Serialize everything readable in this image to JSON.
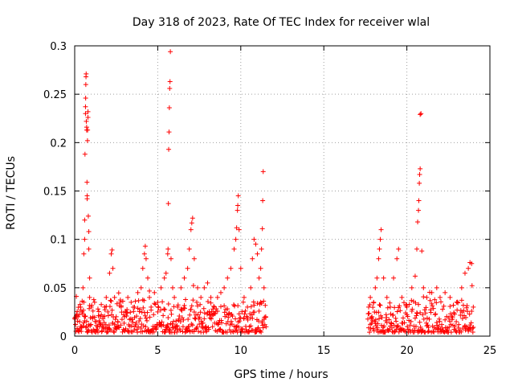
{
  "chart_data": {
    "type": "scatter",
    "title": "Day 318 of 2023, Rate Of TEC Index for receiver wlal",
    "xlabel": "GPS time / hours",
    "ylabel": "ROTI / TECUs",
    "xlim": [
      0,
      25
    ],
    "ylim": [
      0,
      0.3
    ],
    "xticks": [
      0,
      5,
      10,
      15,
      20,
      25
    ],
    "yticks": [
      0,
      0.05,
      0.1,
      0.15,
      0.2,
      0.25,
      0.3
    ],
    "xtick_labels": [
      "0",
      "5",
      "10",
      "15",
      "20",
      "25"
    ],
    "ytick_labels": [
      "0",
      "0.05",
      "0.1",
      "0.15",
      "0.2",
      "0.25",
      "0.3"
    ],
    "grid": true,
    "marker": "+",
    "series": [
      {
        "name": "ROTI",
        "color": "#ff0000",
        "points": [
          [
            0.05,
            0.012
          ],
          [
            0.1,
            0.041
          ],
          [
            0.15,
            0.008
          ],
          [
            0.2,
            0.02
          ],
          [
            0.25,
            0.006
          ],
          [
            0.3,
            0.015
          ],
          [
            0.35,
            0.03
          ],
          [
            0.4,
            0.01
          ],
          [
            0.45,
            0.025
          ],
          [
            0.5,
            0.05
          ],
          [
            0.55,
            0.035
          ],
          [
            0.55,
            0.085
          ],
          [
            0.6,
            0.1
          ],
          [
            0.6,
            0.12
          ],
          [
            0.62,
            0.188
          ],
          [
            0.65,
            0.23
          ],
          [
            0.65,
            0.237
          ],
          [
            0.66,
            0.246
          ],
          [
            0.67,
            0.26
          ],
          [
            0.68,
            0.268
          ],
          [
            0.69,
            0.271
          ],
          [
            0.7,
            0.222
          ],
          [
            0.72,
            0.213
          ],
          [
            0.72,
            0.216
          ],
          [
            0.74,
            0.159
          ],
          [
            0.75,
            0.142
          ],
          [
            0.75,
            0.145
          ],
          [
            0.77,
            0.202
          ],
          [
            0.78,
            0.213
          ],
          [
            0.8,
            0.232
          ],
          [
            0.8,
            0.226
          ],
          [
            0.82,
            0.124
          ],
          [
            0.85,
            0.108
          ],
          [
            0.85,
            0.09
          ],
          [
            0.9,
            0.06
          ],
          [
            0.9,
            0.04
          ],
          [
            1.0,
            0.03
          ],
          [
            1.1,
            0.02
          ],
          [
            1.2,
            0.035
          ],
          [
            1.3,
            0.015
          ],
          [
            1.4,
            0.028
          ],
          [
            1.5,
            0.01
          ],
          [
            1.6,
            0.022
          ],
          [
            1.7,
            0.018
          ],
          [
            1.8,
            0.03
          ],
          [
            1.9,
            0.04
          ],
          [
            2.0,
            0.025
          ],
          [
            2.1,
            0.065
          ],
          [
            2.2,
            0.085
          ],
          [
            2.25,
            0.089
          ],
          [
            2.3,
            0.07
          ],
          [
            2.4,
            0.04
          ],
          [
            2.5,
            0.02
          ],
          [
            2.6,
            0.015
          ],
          [
            2.8,
            0.03
          ],
          [
            3.0,
            0.02
          ],
          [
            3.2,
            0.04
          ],
          [
            3.4,
            0.035
          ],
          [
            3.6,
            0.03
          ],
          [
            3.8,
            0.045
          ],
          [
            4.0,
            0.05
          ],
          [
            4.1,
            0.07
          ],
          [
            4.2,
            0.085
          ],
          [
            4.25,
            0.093
          ],
          [
            4.3,
            0.08
          ],
          [
            4.4,
            0.06
          ],
          [
            4.5,
            0.04
          ],
          [
            4.6,
            0.03
          ],
          [
            4.8,
            0.045
          ],
          [
            5.0,
            0.035
          ],
          [
            5.2,
            0.05
          ],
          [
            5.4,
            0.06
          ],
          [
            5.5,
            0.065
          ],
          [
            5.6,
            0.085
          ],
          [
            5.62,
            0.09
          ],
          [
            5.64,
            0.137
          ],
          [
            5.66,
            0.193
          ],
          [
            5.68,
            0.211
          ],
          [
            5.7,
            0.236
          ],
          [
            5.72,
            0.256
          ],
          [
            5.74,
            0.263
          ],
          [
            5.76,
            0.294
          ],
          [
            5.8,
            0.08
          ],
          [
            5.9,
            0.05
          ],
          [
            6.0,
            0.04
          ],
          [
            6.2,
            0.03
          ],
          [
            6.4,
            0.05
          ],
          [
            6.6,
            0.06
          ],
          [
            6.8,
            0.07
          ],
          [
            6.9,
            0.09
          ],
          [
            7.0,
            0.11
          ],
          [
            7.05,
            0.117
          ],
          [
            7.1,
            0.122
          ],
          [
            7.2,
            0.08
          ],
          [
            7.4,
            0.05
          ],
          [
            7.6,
            0.04
          ],
          [
            7.8,
            0.05
          ],
          [
            8.0,
            0.055
          ],
          [
            8.2,
            0.04
          ],
          [
            8.4,
            0.03
          ],
          [
            8.6,
            0.04
          ],
          [
            8.8,
            0.045
          ],
          [
            9.0,
            0.05
          ],
          [
            9.2,
            0.06
          ],
          [
            9.4,
            0.07
          ],
          [
            9.6,
            0.09
          ],
          [
            9.7,
            0.1
          ],
          [
            9.75,
            0.112
          ],
          [
            9.8,
            0.13
          ],
          [
            9.82,
            0.135
          ],
          [
            9.85,
            0.145
          ],
          [
            9.9,
            0.11
          ],
          [
            10.0,
            0.07
          ],
          [
            10.2,
            0.04
          ],
          [
            10.4,
            0.03
          ],
          [
            10.6,
            0.05
          ],
          [
            10.7,
            0.08
          ],
          [
            10.8,
            0.1
          ],
          [
            10.9,
            0.095
          ],
          [
            11.0,
            0.085
          ],
          [
            11.1,
            0.06
          ],
          [
            11.2,
            0.07
          ],
          [
            11.25,
            0.09
          ],
          [
            11.3,
            0.111
          ],
          [
            11.32,
            0.14
          ],
          [
            11.35,
            0.17
          ],
          [
            11.4,
            0.05
          ],
          [
            11.5,
            0.02
          ],
          [
            17.7,
            0.03
          ],
          [
            17.8,
            0.04
          ],
          [
            17.9,
            0.02
          ],
          [
            18.0,
            0.035
          ],
          [
            18.1,
            0.05
          ],
          [
            18.2,
            0.06
          ],
          [
            18.3,
            0.08
          ],
          [
            18.35,
            0.09
          ],
          [
            18.4,
            0.1
          ],
          [
            18.45,
            0.11
          ],
          [
            18.6,
            0.06
          ],
          [
            18.8,
            0.04
          ],
          [
            19.0,
            0.03
          ],
          [
            19.2,
            0.06
          ],
          [
            19.4,
            0.08
          ],
          [
            19.5,
            0.09
          ],
          [
            19.7,
            0.04
          ],
          [
            20.0,
            0.03
          ],
          [
            20.3,
            0.05
          ],
          [
            20.5,
            0.062
          ],
          [
            20.6,
            0.09
          ],
          [
            20.65,
            0.118
          ],
          [
            20.7,
            0.13
          ],
          [
            20.72,
            0.14
          ],
          [
            20.75,
            0.158
          ],
          [
            20.77,
            0.167
          ],
          [
            20.8,
            0.173
          ],
          [
            20.8,
            0.229
          ],
          [
            20.85,
            0.23
          ],
          [
            20.9,
            0.088
          ],
          [
            21.0,
            0.05
          ],
          [
            21.2,
            0.04
          ],
          [
            21.5,
            0.045
          ],
          [
            21.8,
            0.05
          ],
          [
            22.0,
            0.04
          ],
          [
            22.3,
            0.045
          ],
          [
            22.6,
            0.04
          ],
          [
            23.0,
            0.035
          ],
          [
            23.3,
            0.05
          ],
          [
            23.5,
            0.065
          ],
          [
            23.7,
            0.07
          ],
          [
            23.8,
            0.076
          ],
          [
            23.9,
            0.075
          ],
          [
            24.0,
            0.03
          ]
        ]
      }
    ]
  }
}
